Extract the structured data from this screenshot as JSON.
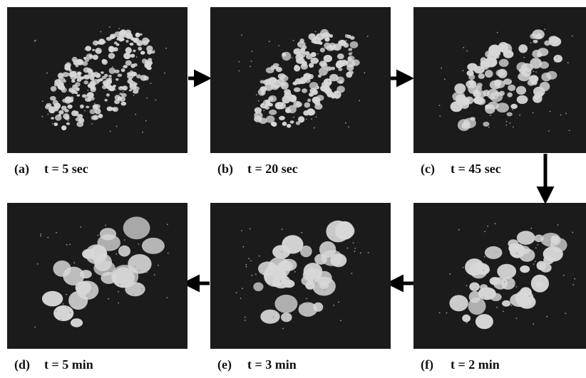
{
  "panels": [
    {
      "letter": "(a)",
      "time": "t = 5 sec"
    },
    {
      "letter": "(b)",
      "time": "t = 20 sec"
    },
    {
      "letter": "(c)",
      "time": "t = 45 sec"
    },
    {
      "letter": "(d)",
      "time": "t = 5 min"
    },
    {
      "letter": "(e)",
      "time": "t = 3 min"
    },
    {
      "letter": "(f)",
      "time": "t = 2 min"
    }
  ]
}
